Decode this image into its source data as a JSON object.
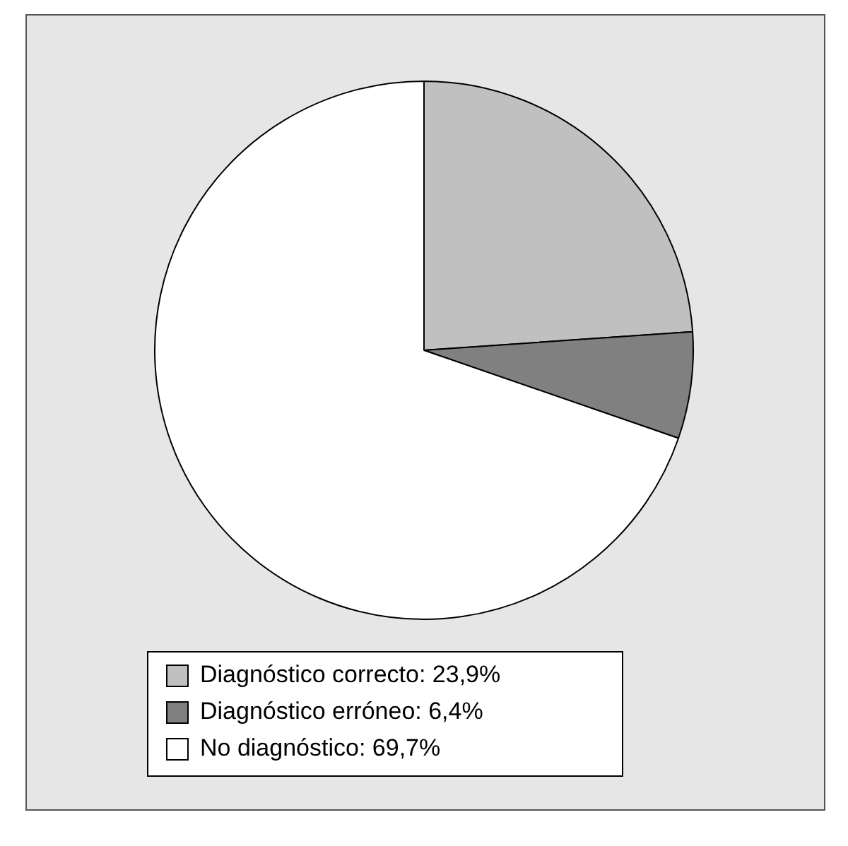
{
  "chart_data": {
    "type": "pie",
    "categories": [
      "Diagnóstico correcto: 23,9%",
      "Diagnóstico erróneo: 6,4%",
      "No diagnóstico: 69,7%"
    ],
    "values": [
      23.9,
      6.4,
      69.7
    ],
    "colors": [
      "#c0c0c0",
      "#808080",
      "#ffffff"
    ],
    "legend": "bottom"
  }
}
